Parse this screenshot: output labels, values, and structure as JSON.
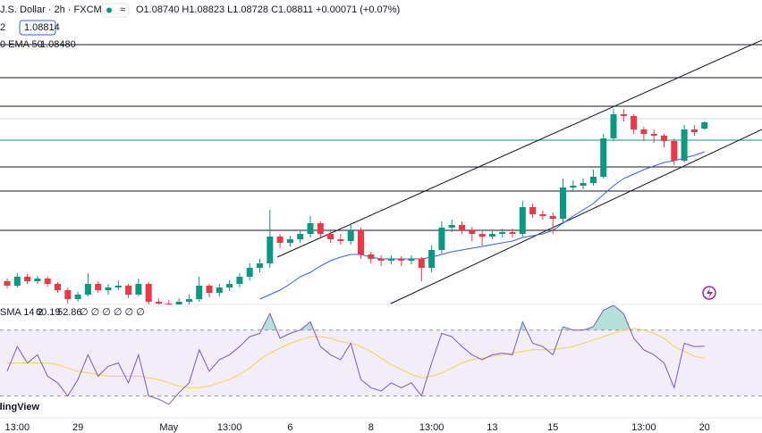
{
  "chart_data": {
    "type": "candlestick",
    "title": "J.S. Dollar · 2h · FXCM",
    "ohlc_text": "O1.08740 H1.08823 L1.08728 C1.08811 +0.00071 (+0.07%)",
    "price_box_prefix": "2",
    "price_box": "1.08814",
    "ema_label": "0 EMA 50",
    "ema_value": "1.08480",
    "watermark": "dingView",
    "categories": [
      null,
      "13:00",
      null,
      null,
      null,
      null,
      null,
      "29",
      null,
      null,
      null,
      null,
      null,
      null,
      null,
      null,
      "May",
      null,
      null,
      null,
      null,
      null,
      "13:00",
      null,
      null,
      null,
      null,
      null,
      "6",
      null,
      null,
      null,
      null,
      null,
      null,
      null,
      "8",
      null,
      null,
      null,
      null,
      null,
      "13:00",
      null,
      null,
      null,
      null,
      null,
      "13",
      null,
      null,
      null,
      null,
      null,
      "15",
      null,
      null,
      null,
      null,
      null,
      null,
      null,
      null,
      "13:00",
      null,
      null,
      null,
      null,
      null,
      "20"
    ],
    "open": [
      1.07031,
      1.06981,
      1.07081,
      1.07031,
      1.07061,
      1.07001,
      1.06931,
      1.06831,
      1.06881,
      1.07001,
      1.06931,
      1.06961,
      1.06981,
      1.06881,
      1.07001,
      1.06801,
      1.06781,
      1.06761,
      1.06801,
      1.06831,
      1.06981,
      1.06901,
      1.06961,
      1.07001,
      1.07081,
      1.07181,
      1.07231,
      1.07531,
      1.07461,
      1.07501,
      1.07561,
      1.07681,
      1.07561,
      1.07501,
      1.07481,
      1.07601,
      1.07331,
      1.07281,
      1.07261,
      1.07281,
      1.07261,
      1.07281,
      1.07181,
      1.07381,
      1.07631,
      1.07661,
      1.07601,
      1.07561,
      1.07531,
      1.07561,
      1.07581,
      1.07561,
      1.07861,
      1.07781,
      1.07761,
      1.07731,
      1.08081,
      1.08101,
      1.08131,
      1.08201,
      1.08631,
      1.08901,
      1.08881,
      1.08731,
      1.08681,
      1.08661,
      1.08601,
      1.08381,
      1.08731,
      1.0874
    ],
    "high": [
      1.07061,
      1.07121,
      1.07111,
      1.07091,
      1.07081,
      1.07021,
      1.06961,
      1.06911,
      1.07121,
      1.07031,
      1.07001,
      1.07041,
      1.07001,
      1.07061,
      1.07021,
      1.06831,
      1.06821,
      1.06841,
      1.06881,
      1.07081,
      1.07001,
      1.07001,
      1.07041,
      1.07121,
      1.07231,
      1.07281,
      1.07831,
      1.07561,
      1.07541,
      1.07601,
      1.07761,
      1.07701,
      1.07601,
      1.07561,
      1.07681,
      1.07631,
      1.07361,
      1.07321,
      1.07321,
      1.07311,
      1.07321,
      1.07301,
      1.07431,
      1.07701,
      1.07721,
      1.07701,
      1.07641,
      1.07601,
      1.07601,
      1.07621,
      1.07621,
      1.07931,
      1.07901,
      1.07821,
      1.07801,
      1.08181,
      1.08161,
      1.08181,
      1.08281,
      1.08681,
      1.08961,
      1.08961,
      1.08901,
      1.08761,
      1.08731,
      1.08681,
      1.08631,
      1.08781,
      1.08781,
      1.08823
    ],
    "low": [
      1.06951,
      1.06961,
      1.07001,
      1.07001,
      1.06971,
      1.06901,
      1.06781,
      1.06801,
      1.06861,
      1.06901,
      1.06881,
      1.06931,
      1.06841,
      1.06861,
      1.06731,
      1.06701,
      1.06681,
      1.06701,
      1.06761,
      1.06801,
      1.06851,
      1.06861,
      1.06921,
      1.06961,
      1.07041,
      1.07131,
      1.07181,
      1.07401,
      1.07421,
      1.07461,
      1.07521,
      1.07521,
      1.07461,
      1.07441,
      1.07441,
      1.07281,
      1.07231,
      1.07201,
      1.07221,
      1.07201,
      1.07221,
      1.07031,
      1.07131,
      1.07341,
      1.07581,
      1.07561,
      1.07481,
      1.07431,
      1.07501,
      1.07521,
      1.07521,
      1.07531,
      1.07741,
      1.07721,
      1.07561,
      1.07681,
      1.08041,
      1.08061,
      1.08101,
      1.08181,
      1.08601,
      1.08821,
      1.08681,
      1.08601,
      1.08581,
      1.08531,
      1.08331,
      1.08361,
      1.08661,
      1.08728
    ],
    "close": [
      1.06981,
      1.07081,
      1.07031,
      1.07061,
      1.07001,
      1.06931,
      1.06831,
      1.06881,
      1.07001,
      1.06931,
      1.06961,
      1.06981,
      1.06881,
      1.07001,
      1.06801,
      1.06781,
      1.06761,
      1.06801,
      1.06831,
      1.06981,
      1.06901,
      1.06961,
      1.07001,
      1.07081,
      1.07181,
      1.07231,
      1.07531,
      1.07461,
      1.07501,
      1.07561,
      1.07681,
      1.07561,
      1.07501,
      1.07481,
      1.07601,
      1.07331,
      1.07281,
      1.07261,
      1.07281,
      1.07261,
      1.07281,
      1.07181,
      1.07381,
      1.07631,
      1.07661,
      1.07601,
      1.07561,
      1.07531,
      1.07561,
      1.07581,
      1.07561,
      1.07861,
      1.07781,
      1.07761,
      1.07731,
      1.08081,
      1.08101,
      1.08131,
      1.08201,
      1.08631,
      1.08901,
      1.08881,
      1.08731,
      1.08681,
      1.08661,
      1.08601,
      1.08381,
      1.08731,
      1.08701,
      1.08811
    ],
    "up_color": "#089981",
    "down_color": "#f23645",
    "ema": {
      "color": "#2962ff",
      "values": [
        null,
        null,
        null,
        null,
        null,
        null,
        null,
        null,
        null,
        null,
        null,
        null,
        null,
        null,
        null,
        null,
        null,
        null,
        null,
        null,
        null,
        null,
        null,
        null,
        null,
        1.06831,
        1.06881,
        1.06931,
        1.07001,
        1.07081,
        1.07131,
        1.07201,
        1.07261,
        1.07301,
        1.07331,
        1.07331,
        1.07301,
        1.07281,
        1.07281,
        1.07281,
        1.07281,
        1.07281,
        1.07301,
        1.07331,
        1.07361,
        1.07381,
        1.07401,
        1.07421,
        1.07441,
        1.07461,
        1.07481,
        1.07521,
        1.07541,
        1.07561,
        1.07601,
        1.07681,
        1.07761,
        1.07831,
        1.07901,
        1.08001,
        1.08101,
        1.08181,
        1.08231,
        1.08281,
        1.08321,
        1.08361,
        1.08381,
        1.08411,
        1.08441,
        1.0848
      ]
    },
    "ylim": [
      1.06781,
      1.09781
    ],
    "rsi": {
      "label": "SMA 14 2",
      "value_text": "60.19",
      "ma_text": "52.86",
      "extra_text": "∅ ∅ ∅ ∅ ∅ ∅",
      "color": "#7e57c2",
      "ma_color": "#f7d04a",
      "band": [
        30,
        70
      ],
      "ylim": [
        20,
        85
      ],
      "values": [
        45,
        60,
        50,
        55,
        42,
        38,
        30,
        40,
        55,
        42,
        48,
        50,
        38,
        55,
        30,
        28,
        25,
        32,
        38,
        58,
        45,
        52,
        55,
        60,
        66,
        68,
        80,
        65,
        68,
        70,
        75,
        60,
        55,
        52,
        62,
        40,
        35,
        33,
        38,
        35,
        38,
        30,
        50,
        68,
        66,
        60,
        55,
        52,
        55,
        56,
        55,
        75,
        62,
        60,
        55,
        72,
        70,
        70,
        72,
        82,
        85,
        80,
        65,
        58,
        55,
        50,
        35,
        62,
        60,
        60.19
      ],
      "ma": [
        50,
        50,
        50,
        50,
        50,
        49,
        47,
        45,
        44,
        43,
        42,
        42,
        42,
        42,
        41,
        40,
        38,
        36,
        35,
        35,
        36,
        38,
        40,
        43,
        47,
        52,
        56,
        59,
        62,
        64,
        66,
        66,
        65,
        63,
        62,
        60,
        57,
        53,
        49,
        46,
        43,
        41,
        42,
        44,
        47,
        50,
        52,
        53,
        54,
        55,
        56,
        57,
        58,
        58,
        58,
        59,
        60,
        62,
        64,
        66,
        68,
        70,
        71,
        70,
        68,
        65,
        60,
        57,
        54,
        52.86
      ]
    }
  }
}
